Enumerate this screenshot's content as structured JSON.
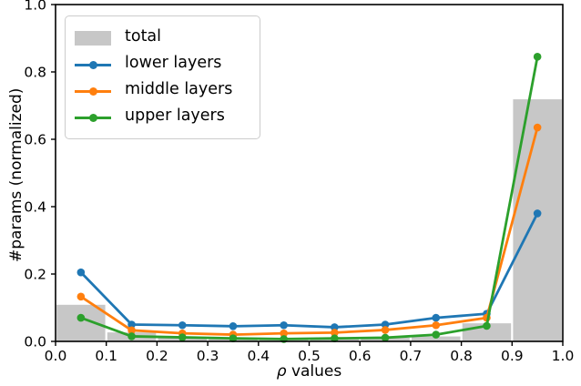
{
  "chart_data": {
    "type": "bar",
    "title": "",
    "xlabel": "ρ values",
    "xlabel_parts": {
      "symbol": "ρ",
      "rest": " values"
    },
    "ylabel": "#params (normalized)",
    "xlim": [
      0.0,
      1.0
    ],
    "ylim": [
      0.0,
      1.0
    ],
    "grid": false,
    "legend_position": "upper left",
    "x_tick_labels": [
      "0.0",
      "0.1",
      "0.2",
      "0.3",
      "0.4",
      "0.5",
      "0.6",
      "0.7",
      "0.8",
      "0.9",
      "1.0"
    ],
    "x_tick_values": [
      0.0,
      0.1,
      0.2,
      0.3,
      0.4,
      0.5,
      0.6,
      0.7,
      0.8,
      0.9,
      1.0
    ],
    "y_tick_labels": [
      "0.0",
      "0.2",
      "0.4",
      "0.6",
      "0.8",
      "1.0"
    ],
    "y_tick_values": [
      0.0,
      0.2,
      0.4,
      0.6,
      0.8,
      1.0
    ],
    "bin_edges": [
      0.0,
      0.1,
      0.2,
      0.3,
      0.4,
      0.5,
      0.6,
      0.7,
      0.8,
      0.9,
      1.0
    ],
    "bin_centers": [
      0.05,
      0.15,
      0.25,
      0.35,
      0.45,
      0.55,
      0.65,
      0.75,
      0.85,
      0.95
    ],
    "bars": {
      "name": "total",
      "color": "#c7c7c7",
      "values": [
        0.11,
        0.028,
        0.013,
        0.01,
        0.011,
        0.012,
        0.012,
        0.016,
        0.055,
        0.72
      ]
    },
    "series": [
      {
        "name": "lower layers",
        "color": "#1f77b4",
        "x": [
          0.05,
          0.15,
          0.25,
          0.35,
          0.45,
          0.55,
          0.65,
          0.75,
          0.85,
          0.95
        ],
        "values": [
          0.205,
          0.05,
          0.048,
          0.045,
          0.048,
          0.042,
          0.05,
          0.07,
          0.082,
          0.38
        ]
      },
      {
        "name": "middle layers",
        "color": "#ff7f0e",
        "x": [
          0.05,
          0.15,
          0.25,
          0.35,
          0.45,
          0.55,
          0.65,
          0.75,
          0.85,
          0.95
        ],
        "values": [
          0.133,
          0.033,
          0.024,
          0.02,
          0.024,
          0.026,
          0.034,
          0.048,
          0.07,
          0.635
        ]
      },
      {
        "name": "upper layers",
        "color": "#2ca02c",
        "x": [
          0.05,
          0.15,
          0.25,
          0.35,
          0.45,
          0.55,
          0.65,
          0.75,
          0.85,
          0.95
        ],
        "values": [
          0.07,
          0.015,
          0.012,
          0.009,
          0.007,
          0.009,
          0.011,
          0.02,
          0.046,
          0.845
        ]
      }
    ],
    "legend": [
      {
        "label": "total",
        "type": "patch",
        "color": "#c7c7c7"
      },
      {
        "label": "lower layers",
        "type": "line",
        "color": "#1f77b4"
      },
      {
        "label": "middle layers",
        "type": "line",
        "color": "#ff7f0e"
      },
      {
        "label": "upper layers",
        "type": "line",
        "color": "#2ca02c"
      }
    ]
  }
}
